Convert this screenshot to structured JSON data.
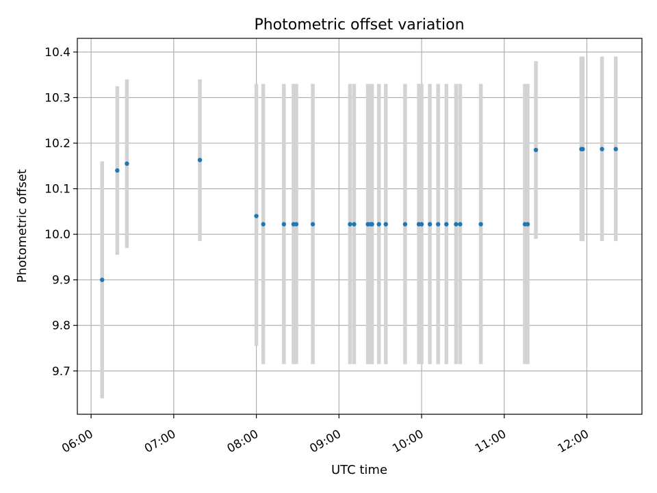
{
  "chart_data": {
    "type": "scatter",
    "title": "Photometric offset variation",
    "xlabel": "UTC time",
    "ylabel": "Photometric offset",
    "x_axis": "time",
    "xlim": [
      "05:50",
      "12:40"
    ],
    "ylim": [
      9.605,
      10.43
    ],
    "x_ticks": [
      "06:00",
      "07:00",
      "08:00",
      "09:00",
      "10:00",
      "11:00",
      "12:00"
    ],
    "y_ticks": [
      9.7,
      9.8,
      9.9,
      10.0,
      10.1,
      10.2,
      10.3,
      10.4
    ],
    "grid": true,
    "marker_color": "#1f77b4",
    "errorbar_color": "#d3d3d3",
    "points": [
      {
        "x": "06:08",
        "y": 9.9,
        "ylow": 9.64,
        "yhigh": 10.16
      },
      {
        "x": "06:19",
        "y": 10.14,
        "ylow": 9.955,
        "yhigh": 10.325
      },
      {
        "x": "06:26",
        "y": 10.155,
        "ylow": 9.97,
        "yhigh": 10.34
      },
      {
        "x": "07:19",
        "y": 10.163,
        "ylow": 9.985,
        "yhigh": 10.34
      },
      {
        "x": "08:00",
        "y": 10.04,
        "ylow": 9.755,
        "yhigh": 10.33
      },
      {
        "x": "08:05",
        "y": 10.022,
        "ylow": 9.715,
        "yhigh": 10.33
      },
      {
        "x": "08:20",
        "y": 10.022,
        "ylow": 9.715,
        "yhigh": 10.33
      },
      {
        "x": "08:27",
        "y": 10.022,
        "ylow": 9.715,
        "yhigh": 10.33
      },
      {
        "x": "08:29",
        "y": 10.022,
        "ylow": 9.715,
        "yhigh": 10.33
      },
      {
        "x": "08:41",
        "y": 10.022,
        "ylow": 9.715,
        "yhigh": 10.33
      },
      {
        "x": "09:08",
        "y": 10.022,
        "ylow": 9.715,
        "yhigh": 10.33
      },
      {
        "x": "09:11",
        "y": 10.022,
        "ylow": 9.715,
        "yhigh": 10.33
      },
      {
        "x": "09:21",
        "y": 10.022,
        "ylow": 9.715,
        "yhigh": 10.33
      },
      {
        "x": "09:23",
        "y": 10.022,
        "ylow": 9.715,
        "yhigh": 10.33
      },
      {
        "x": "09:24",
        "y": 10.022,
        "ylow": 9.715,
        "yhigh": 10.33
      },
      {
        "x": "09:29",
        "y": 10.022,
        "ylow": 9.715,
        "yhigh": 10.33
      },
      {
        "x": "09:34",
        "y": 10.022,
        "ylow": 9.715,
        "yhigh": 10.33
      },
      {
        "x": "09:48",
        "y": 10.022,
        "ylow": 9.715,
        "yhigh": 10.33
      },
      {
        "x": "09:58",
        "y": 10.022,
        "ylow": 9.715,
        "yhigh": 10.33
      },
      {
        "x": "10:00",
        "y": 10.022,
        "ylow": 9.715,
        "yhigh": 10.33
      },
      {
        "x": "10:06",
        "y": 10.022,
        "ylow": 9.715,
        "yhigh": 10.33
      },
      {
        "x": "10:12",
        "y": 10.022,
        "ylow": 9.715,
        "yhigh": 10.33
      },
      {
        "x": "10:18",
        "y": 10.022,
        "ylow": 9.715,
        "yhigh": 10.33
      },
      {
        "x": "10:25",
        "y": 10.022,
        "ylow": 9.715,
        "yhigh": 10.33
      },
      {
        "x": "10:28",
        "y": 10.022,
        "ylow": 9.715,
        "yhigh": 10.33
      },
      {
        "x": "10:43",
        "y": 10.022,
        "ylow": 9.715,
        "yhigh": 10.33
      },
      {
        "x": "11:15",
        "y": 10.022,
        "ylow": 9.715,
        "yhigh": 10.33
      },
      {
        "x": "11:17",
        "y": 10.022,
        "ylow": 9.715,
        "yhigh": 10.33
      },
      {
        "x": "11:23",
        "y": 10.185,
        "ylow": 9.99,
        "yhigh": 10.38
      },
      {
        "x": "11:56",
        "y": 10.187,
        "ylow": 9.985,
        "yhigh": 10.39
      },
      {
        "x": "11:57",
        "y": 10.187,
        "ylow": 9.985,
        "yhigh": 10.39
      },
      {
        "x": "12:11",
        "y": 10.187,
        "ylow": 9.985,
        "yhigh": 10.39
      },
      {
        "x": "12:21",
        "y": 10.187,
        "ylow": 9.985,
        "yhigh": 10.39
      }
    ]
  }
}
